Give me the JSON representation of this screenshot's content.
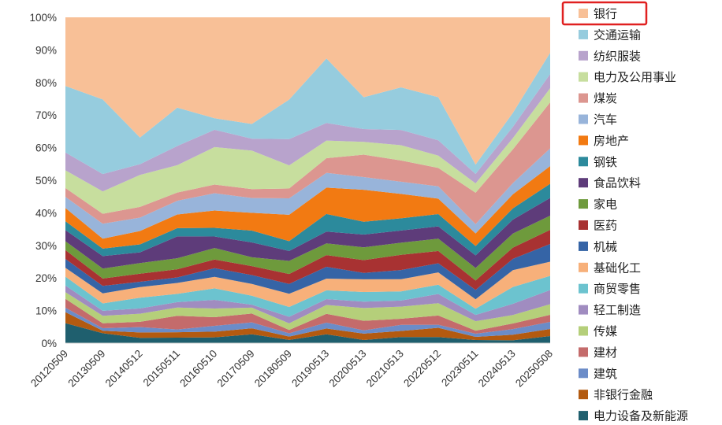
{
  "chart_data": {
    "type": "area",
    "stacked": true,
    "normalized": true,
    "x": [
      "20120509",
      "20130509",
      "20140512",
      "20150511",
      "20160510",
      "20170509",
      "20180509",
      "20190513",
      "20200513",
      "20210513",
      "20220512",
      "20230511",
      "20240513",
      "20250508"
    ],
    "ylim": [
      0,
      100
    ],
    "yticks": [
      "0%",
      "10%",
      "20%",
      "30%",
      "40%",
      "50%",
      "60%",
      "70%",
      "80%",
      "90%",
      "100%"
    ],
    "grid": false,
    "legend_position": "right",
    "highlighted_legend_entry": "银行",
    "series": [
      {
        "name": "电力设备及新能源",
        "color": "#1F5F6E",
        "values": [
          4.5,
          2.0,
          1.0,
          1.0,
          1.0,
          1.5,
          0.5,
          1.5,
          0.5,
          1.0,
          1.0,
          0.5,
          0.5,
          1.0
        ]
      },
      {
        "name": "非银行金融",
        "color": "#B35A10",
        "values": [
          2.5,
          0.5,
          1.0,
          1.0,
          1.0,
          1.0,
          0.5,
          1.0,
          1.0,
          1.0,
          1.5,
          0.5,
          1.0,
          1.0
        ]
      },
      {
        "name": "建筑",
        "color": "#6B8CC8",
        "values": [
          1.0,
          0.5,
          1.0,
          0.5,
          1.0,
          1.0,
          0.5,
          1.0,
          0.5,
          1.0,
          0.5,
          0.5,
          1.0,
          1.0
        ]
      },
      {
        "name": "建材",
        "color": "#C46B6B",
        "values": [
          2.0,
          1.0,
          1.0,
          2.5,
          1.5,
          1.5,
          0.5,
          1.5,
          1.5,
          1.0,
          1.5,
          0.5,
          1.0,
          1.0
        ]
      },
      {
        "name": "传媒",
        "color": "#B5CF7A",
        "values": [
          1.5,
          1.5,
          1.5,
          1.5,
          1.5,
          1.0,
          1.0,
          1.5,
          2.0,
          2.0,
          2.0,
          1.5,
          1.5,
          1.5
        ]
      },
      {
        "name": "轻工制造",
        "color": "#A08CC0",
        "values": [
          1.5,
          1.0,
          1.0,
          1.0,
          1.5,
          0.5,
          1.0,
          1.0,
          1.0,
          1.0,
          1.5,
          1.0,
          2.0,
          2.0
        ]
      },
      {
        "name": "商贸零售",
        "color": "#6CC3CF",
        "values": [
          2.0,
          1.5,
          2.0,
          1.5,
          2.0,
          1.5,
          1.5,
          1.5,
          1.5,
          1.5,
          1.5,
          1.0,
          3.0,
          2.0
        ]
      },
      {
        "name": "基础化工",
        "color": "#F7B07A",
        "values": [
          2.0,
          2.0,
          2.0,
          2.0,
          2.0,
          2.0,
          2.0,
          2.0,
          2.0,
          2.0,
          2.0,
          1.5,
          3.0,
          2.0
        ]
      },
      {
        "name": "机械",
        "color": "#3564A6",
        "values": [
          2.0,
          1.5,
          1.0,
          1.0,
          1.5,
          1.5,
          1.5,
          2.0,
          1.0,
          1.5,
          1.5,
          1.5,
          2.0,
          2.5
        ]
      },
      {
        "name": "医药",
        "color": "#A83232",
        "values": [
          2.0,
          1.5,
          1.5,
          1.5,
          1.5,
          1.5,
          1.5,
          2.0,
          2.0,
          2.5,
          2.0,
          1.5,
          2.0,
          2.0
        ]
      },
      {
        "name": "家电",
        "color": "#6E9A3C",
        "values": [
          2.0,
          2.0,
          2.0,
          2.0,
          2.0,
          1.5,
          2.0,
          2.0,
          2.0,
          2.0,
          2.0,
          2.0,
          2.5,
          2.0
        ]
      },
      {
        "name": "食品饮料",
        "color": "#5E3C7A",
        "values": [
          2.5,
          2.5,
          2.0,
          4.0,
          2.0,
          2.5,
          1.5,
          2.0,
          2.0,
          2.0,
          2.0,
          2.0,
          2.5,
          2.5
        ]
      },
      {
        "name": "钢铁",
        "color": "#2C8A9C",
        "values": [
          2.0,
          1.5,
          1.5,
          1.5,
          1.5,
          2.0,
          1.5,
          3.0,
          2.0,
          2.0,
          2.0,
          1.5,
          2.0,
          2.0
        ]
      },
      {
        "name": "房地产",
        "color": "#F27A12",
        "values": [
          3.0,
          2.0,
          2.5,
          2.5,
          3.0,
          3.0,
          4.0,
          4.5,
          5.0,
          4.0,
          2.5,
          2.0,
          2.5,
          2.5
        ]
      },
      {
        "name": "汽车",
        "color": "#98B4DA",
        "values": [
          2.5,
          3.0,
          2.5,
          2.5,
          3.0,
          2.5,
          2.5,
          2.5,
          2.0,
          2.0,
          2.0,
          1.5,
          2.0,
          2.5
        ]
      },
      {
        "name": "煤炭",
        "color": "#DC9690",
        "values": [
          2.0,
          2.0,
          2.0,
          1.5,
          1.5,
          1.5,
          1.5,
          2.5,
          3.5,
          3.5,
          3.0,
          5.0,
          6.0,
          6.5
        ]
      },
      {
        "name": "电力及公用事业",
        "color": "#C7DE9E",
        "values": [
          4.0,
          4.5,
          6.0,
          5.0,
          6.5,
          6.5,
          3.5,
          3.0,
          2.0,
          2.5,
          2.0,
          1.5,
          2.0,
          2.0
        ]
      },
      {
        "name": "纺织服装",
        "color": "#B8A3CC",
        "values": [
          4.0,
          3.5,
          2.0,
          3.5,
          3.0,
          2.0,
          4.0,
          3.0,
          2.0,
          2.5,
          2.5,
          1.5,
          2.0,
          2.0
        ]
      },
      {
        "name": "交通运输",
        "color": "#96CCDE",
        "values": [
          15.0,
          15.0,
          5.0,
          7.0,
          2.0,
          2.5,
          6.0,
          11.0,
          5.0,
          7.0,
          7.0,
          1.5,
          2.5,
          3.0
        ]
      },
      {
        "name": "银行",
        "color": "#F8C097",
        "values": [
          15.5,
          16.5,
          22.5,
          16.5,
          17.5,
          18.0,
          12.5,
          7.0,
          12.5,
          11.5,
          13.0,
          23.5,
          17.0,
          5.0
        ]
      }
    ]
  }
}
